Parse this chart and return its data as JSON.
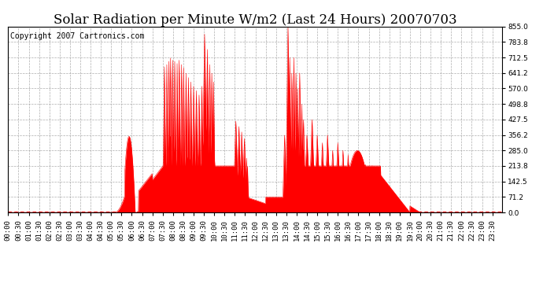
{
  "title": "Solar Radiation per Minute W/m2 (Last 24 Hours) 20070703",
  "copyright_text": "Copyright 2007 Cartronics.com",
  "fill_color": "#FF0000",
  "line_color": "#FF0000",
  "background_color": "#FFFFFF",
  "grid_color": "#AAAAAA",
  "y_ticks": [
    0.0,
    71.2,
    142.5,
    213.8,
    285.0,
    356.2,
    427.5,
    498.8,
    570.0,
    641.2,
    712.5,
    783.8,
    855.0
  ],
  "ylim": [
    0,
    855.0
  ],
  "title_fontsize": 12,
  "copyright_fontsize": 7,
  "tick_fontsize": 6.5
}
